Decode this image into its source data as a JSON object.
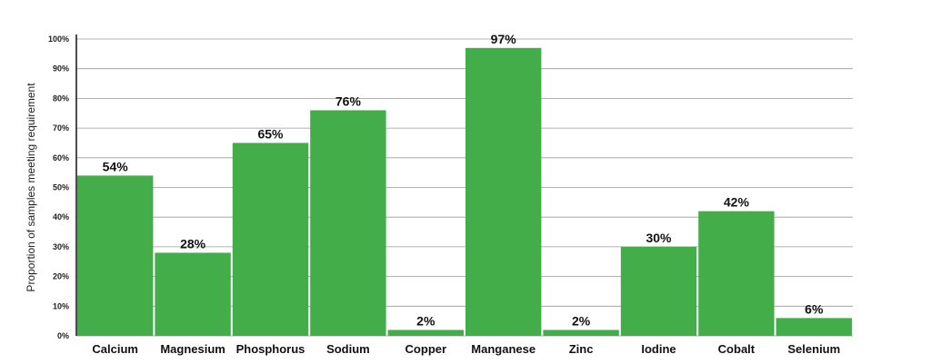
{
  "chart_data": {
    "type": "bar",
    "categories": [
      "Calcium",
      "Magnesium",
      "Phosphorus",
      "Sodium",
      "Copper",
      "Manganese",
      "Zinc",
      "Iodine",
      "Cobalt",
      "Selenium"
    ],
    "values": [
      54,
      28,
      65,
      76,
      2,
      97,
      2,
      30,
      42,
      6
    ],
    "data_labels": [
      "54%",
      "28%",
      "65%",
      "76%",
      "2%",
      "97%",
      "2%",
      "30%",
      "42%",
      "6%"
    ],
    "title": "",
    "xlabel": "",
    "ylabel": "Proportion of samples meeting requirement",
    "ylim": [
      0,
      100
    ],
    "yticks": [
      0,
      10,
      20,
      30,
      40,
      50,
      60,
      70,
      80,
      90,
      100
    ],
    "ytick_labels": [
      "0%",
      "10%",
      "20%",
      "30%",
      "40%",
      "50%",
      "60%",
      "70%",
      "80%",
      "90%",
      "100%"
    ],
    "grid": true,
    "bar_color": "#43ad4a"
  }
}
